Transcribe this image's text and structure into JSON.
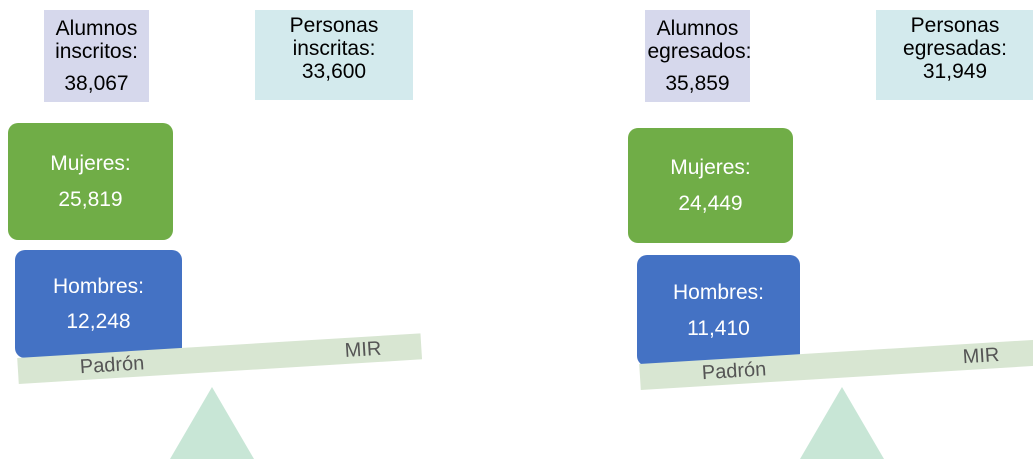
{
  "panels": [
    {
      "top_left": {
        "label": "Alumnos inscritos:",
        "value": "38,067"
      },
      "top_right": {
        "label": "Personas inscritas:",
        "value": "33,600"
      },
      "women": {
        "label": "Mujeres:",
        "value": "25,819"
      },
      "men": {
        "label": "Hombres:",
        "value": "12,248"
      },
      "beam": {
        "left": "Padrón",
        "right": "MIR"
      }
    },
    {
      "top_left": {
        "label": "Alumnos egresados:",
        "value": "35,859"
      },
      "top_right": {
        "label": "Personas egresadas:",
        "value": "31,949"
      },
      "women": {
        "label": "Mujeres:",
        "value": "24,449"
      },
      "men": {
        "label": "Hombres:",
        "value": "11,410"
      },
      "beam": {
        "left": "Padrón",
        "right": "MIR"
      }
    }
  ]
}
